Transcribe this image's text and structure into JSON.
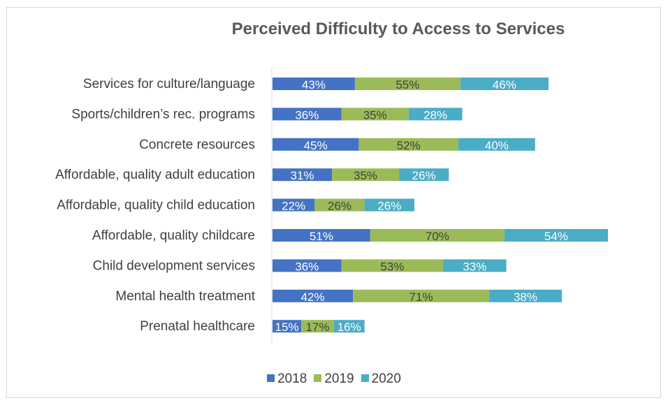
{
  "chart_data": {
    "type": "bar",
    "orientation": "horizontal",
    "stacked": true,
    "title": "Perceived Difficulty to Access to Services",
    "categories": [
      "Services for culture/language",
      "Sports/children’s rec. programs",
      "Concrete resources",
      "Affordable, quality adult education",
      "Affordable, quality child education",
      "Affordable, quality childcare",
      "Child development services",
      "Mental health treatment",
      "Prenatal healthcare"
    ],
    "series": [
      {
        "name": "2018",
        "color": "#4472c4",
        "label_color": "#ffffff",
        "values": [
          43,
          36,
          45,
          31,
          22,
          51,
          36,
          42,
          15
        ]
      },
      {
        "name": "2019",
        "color": "#9bbb59",
        "label_color": "#404040",
        "values": [
          55,
          35,
          52,
          35,
          26,
          70,
          53,
          71,
          17
        ]
      },
      {
        "name": "2020",
        "color": "#4bacc6",
        "label_color": "#ffffff",
        "values": [
          46,
          28,
          40,
          26,
          26,
          54,
          33,
          38,
          16
        ]
      }
    ],
    "value_suffix": "%",
    "xlabel": "",
    "ylabel": "",
    "grid": false,
    "legend_position": "bottom"
  }
}
